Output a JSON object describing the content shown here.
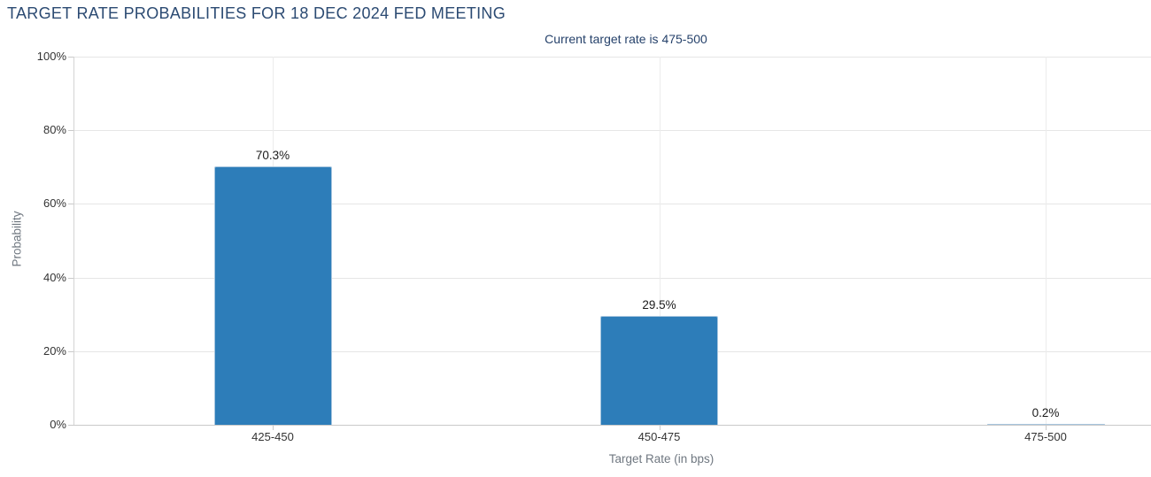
{
  "chart_data": {
    "type": "bar",
    "title": "TARGET RATE PROBABILITIES FOR 18 DEC 2024 FED MEETING",
    "subtitle": "Current target rate is 475-500",
    "categories": [
      "425-450",
      "450-475",
      "475-500"
    ],
    "series": [
      {
        "name": "Probability",
        "values": [
          70.3,
          29.5,
          0.2
        ],
        "labels": [
          "70.3%",
          "29.5%",
          "0.2%"
        ]
      }
    ],
    "xlabel": "Target Rate (in bps)",
    "ylabel": "Probability",
    "ylim": [
      0,
      100
    ],
    "yticks": [
      0,
      20,
      40,
      60,
      80,
      100
    ],
    "ytick_labels": [
      "0%",
      "20%",
      "40%",
      "60%",
      "80%",
      "100%"
    ],
    "grid": true,
    "legend": "none",
    "colors": {
      "bar_fill": "#2d7db9",
      "bar_border": "#a7c6df",
      "title_text": "#2b4a72",
      "axis_title_text": "#6f7780",
      "tick_label_text": "#333333",
      "gridline": "#e6e6e6",
      "axis_line": "#c9c9c9"
    }
  }
}
